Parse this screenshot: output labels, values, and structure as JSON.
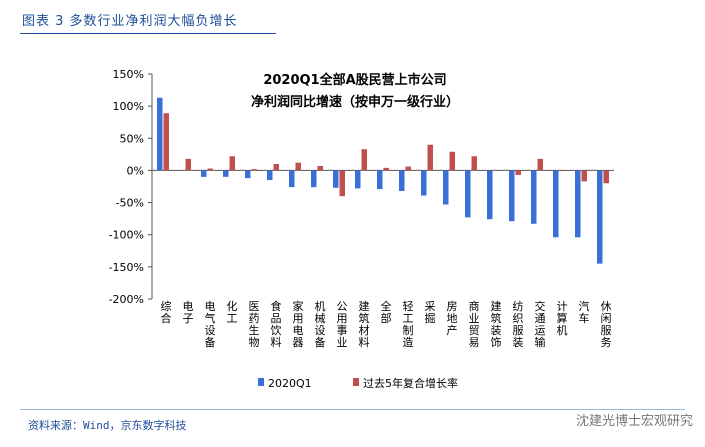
{
  "figure": {
    "label": "图表 3 多数行业净利润大幅负增长",
    "source": "资料来源：Wind，京东数字科技",
    "watermark": "沈建光博士宏观研究"
  },
  "chart_data": {
    "type": "bar",
    "title": "2020Q1全部A股民营上市公司",
    "subtitle": "净利润同比增速（按申万一级行业）",
    "xlabel": "",
    "ylabel": "",
    "ylim": [
      -200,
      150
    ],
    "yticks": [
      150,
      100,
      50,
      0,
      -50,
      -100,
      -150,
      -200
    ],
    "ytick_labels": [
      "150%",
      "100%",
      "50%",
      "0%",
      "-50%",
      "-100%",
      "-150%",
      "-200%"
    ],
    "categories": [
      "综合",
      "电子",
      "电气设备",
      "化工",
      "医药生物",
      "食品饮料",
      "家用电器",
      "机械设备",
      "公用事业",
      "建筑材料",
      "全部",
      "轻工制造",
      "采掘",
      "房地产",
      "商业贸易",
      "建筑装饰",
      "纺织服装",
      "交通运输",
      "计算机",
      "汽车",
      "休闲服务"
    ],
    "series": [
      {
        "name": "2020Q1",
        "color": "#3a6fd8",
        "values": [
          113,
          0,
          -10,
          -10,
          -12,
          -15,
          -26,
          -26,
          -27,
          -28,
          -29,
          -32,
          -39,
          -53,
          -73,
          -76,
          -79,
          -83,
          -104,
          -104,
          -145
        ]
      },
      {
        "name": "过去5年复合增长率",
        "color": "#c0504d",
        "values": [
          89,
          18,
          3,
          22,
          2,
          10,
          12,
          7,
          -40,
          33,
          4,
          6,
          40,
          29,
          22,
          0,
          -7,
          18,
          -1,
          -17,
          -20
        ]
      }
    ],
    "legend_position": "bottom"
  }
}
